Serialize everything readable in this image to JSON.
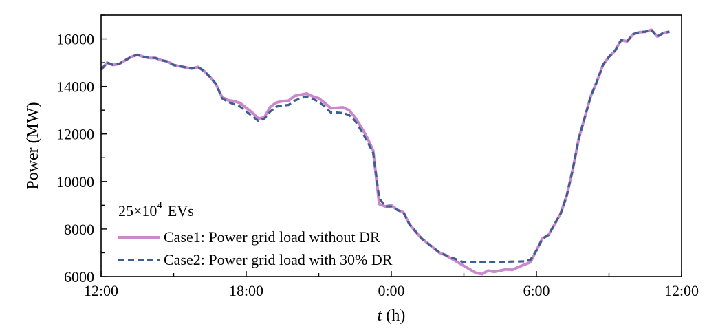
{
  "chart_data": {
    "type": "line",
    "xlabel_var": "t",
    "xlabel_unit": " (h)",
    "ylabel": "Power (MW)",
    "xlim": [
      0,
      24
    ],
    "ylim": [
      6000,
      17000
    ],
    "x_ticks": [
      {
        "value": 0,
        "label": "12:00"
      },
      {
        "value": 6,
        "label": "18:00"
      },
      {
        "value": 12,
        "label": "0:00"
      },
      {
        "value": 18,
        "label": "6:00"
      },
      {
        "value": 24,
        "label": "12:00"
      }
    ],
    "y_ticks": [
      6000,
      8000,
      10000,
      12000,
      14000,
      16000
    ],
    "legend": {
      "header_base": "25×10",
      "header_sup": "4",
      "header_tail": "EVs",
      "placement": "bottom-left"
    },
    "series": [
      {
        "name": "Case1: Power grid load without DR",
        "color": "#cc88cc",
        "dash": "solid",
        "points": [
          [
            0,
            14700
          ],
          [
            0.25,
            15000
          ],
          [
            0.5,
            14900
          ],
          [
            0.75,
            14950
          ],
          [
            1.0,
            15100
          ],
          [
            1.25,
            15250
          ],
          [
            1.5,
            15330
          ],
          [
            1.75,
            15250
          ],
          [
            2.0,
            15200
          ],
          [
            2.25,
            15200
          ],
          [
            2.5,
            15100
          ],
          [
            2.75,
            15050
          ],
          [
            3.0,
            14900
          ],
          [
            3.25,
            14850
          ],
          [
            3.5,
            14800
          ],
          [
            3.75,
            14750
          ],
          [
            4.0,
            14820
          ],
          [
            4.25,
            14650
          ],
          [
            4.5,
            14400
          ],
          [
            4.75,
            14100
          ],
          [
            5.0,
            13550
          ],
          [
            5.25,
            13420
          ],
          [
            5.5,
            13380
          ],
          [
            5.75,
            13300
          ],
          [
            6.0,
            13100
          ],
          [
            6.25,
            12900
          ],
          [
            6.5,
            12650
          ],
          [
            6.75,
            12700
          ],
          [
            7.0,
            13150
          ],
          [
            7.25,
            13320
          ],
          [
            7.5,
            13380
          ],
          [
            7.75,
            13400
          ],
          [
            8.0,
            13600
          ],
          [
            8.25,
            13650
          ],
          [
            8.5,
            13700
          ],
          [
            8.75,
            13580
          ],
          [
            9.0,
            13500
          ],
          [
            9.25,
            13300
          ],
          [
            9.5,
            13080
          ],
          [
            9.75,
            13100
          ],
          [
            10.0,
            13120
          ],
          [
            10.25,
            13000
          ],
          [
            10.5,
            12700
          ],
          [
            10.75,
            12300
          ],
          [
            11.0,
            11850
          ],
          [
            11.25,
            11300
          ],
          [
            11.5,
            9050
          ],
          [
            11.75,
            8950
          ],
          [
            12.0,
            9000
          ],
          [
            12.25,
            8800
          ],
          [
            12.5,
            8700
          ],
          [
            12.75,
            8200
          ],
          [
            13.0,
            7900
          ],
          [
            13.25,
            7600
          ],
          [
            13.5,
            7400
          ],
          [
            13.75,
            7200
          ],
          [
            14.0,
            7000
          ],
          [
            14.25,
            6900
          ],
          [
            14.5,
            6750
          ],
          [
            14.75,
            6600
          ],
          [
            15.0,
            6450
          ],
          [
            15.25,
            6300
          ],
          [
            15.5,
            6150
          ],
          [
            15.75,
            6100
          ],
          [
            16.0,
            6250
          ],
          [
            16.25,
            6200
          ],
          [
            16.5,
            6250
          ],
          [
            16.75,
            6300
          ],
          [
            17.0,
            6280
          ],
          [
            17.25,
            6400
          ],
          [
            17.5,
            6500
          ],
          [
            17.75,
            6600
          ],
          [
            18.0,
            7100
          ],
          [
            18.25,
            7600
          ],
          [
            18.5,
            7750
          ],
          [
            18.75,
            8200
          ],
          [
            19.0,
            8650
          ],
          [
            19.25,
            9400
          ],
          [
            19.5,
            10500
          ],
          [
            19.75,
            11800
          ],
          [
            20.0,
            12700
          ],
          [
            20.25,
            13600
          ],
          [
            20.5,
            14200
          ],
          [
            20.75,
            14900
          ],
          [
            21.0,
            15250
          ],
          [
            21.25,
            15500
          ],
          [
            21.5,
            15950
          ],
          [
            21.75,
            15900
          ],
          [
            22.0,
            16200
          ],
          [
            22.25,
            16280
          ],
          [
            22.5,
            16300
          ],
          [
            22.75,
            16380
          ],
          [
            23.0,
            16100
          ],
          [
            23.25,
            16250
          ],
          [
            23.5,
            16300
          ]
        ]
      },
      {
        "name": "Case2: Power grid load with 30% DR",
        "color": "#3d5f8f",
        "dash": "dashed",
        "points": [
          [
            0,
            14700
          ],
          [
            0.25,
            15000
          ],
          [
            0.5,
            14900
          ],
          [
            0.75,
            14950
          ],
          [
            1.0,
            15100
          ],
          [
            1.25,
            15250
          ],
          [
            1.5,
            15330
          ],
          [
            1.75,
            15250
          ],
          [
            2.0,
            15200
          ],
          [
            2.25,
            15200
          ],
          [
            2.5,
            15100
          ],
          [
            2.75,
            15050
          ],
          [
            3.0,
            14900
          ],
          [
            3.25,
            14850
          ],
          [
            3.5,
            14800
          ],
          [
            3.75,
            14750
          ],
          [
            4.0,
            14820
          ],
          [
            4.25,
            14650
          ],
          [
            4.5,
            14400
          ],
          [
            4.75,
            14100
          ],
          [
            5.0,
            13500
          ],
          [
            5.25,
            13350
          ],
          [
            5.5,
            13250
          ],
          [
            5.75,
            13150
          ],
          [
            6.0,
            12950
          ],
          [
            6.25,
            12750
          ],
          [
            6.5,
            12550
          ],
          [
            6.75,
            12650
          ],
          [
            7.0,
            12950
          ],
          [
            7.25,
            13150
          ],
          [
            7.5,
            13200
          ],
          [
            7.75,
            13220
          ],
          [
            8.0,
            13400
          ],
          [
            8.25,
            13500
          ],
          [
            8.5,
            13580
          ],
          [
            8.75,
            13480
          ],
          [
            9.0,
            13350
          ],
          [
            9.25,
            13150
          ],
          [
            9.5,
            12900
          ],
          [
            9.75,
            12900
          ],
          [
            10.0,
            12880
          ],
          [
            10.25,
            12800
          ],
          [
            10.5,
            12550
          ],
          [
            10.75,
            12150
          ],
          [
            11.0,
            11700
          ],
          [
            11.25,
            11200
          ],
          [
            11.5,
            9300
          ],
          [
            11.75,
            8950
          ],
          [
            12.0,
            8950
          ],
          [
            12.25,
            8800
          ],
          [
            12.5,
            8700
          ],
          [
            12.75,
            8200
          ],
          [
            13.0,
            7900
          ],
          [
            13.25,
            7600
          ],
          [
            13.5,
            7400
          ],
          [
            13.75,
            7200
          ],
          [
            14.0,
            7000
          ],
          [
            14.25,
            6900
          ],
          [
            14.5,
            6800
          ],
          [
            14.75,
            6700
          ],
          [
            15.0,
            6600
          ],
          [
            15.25,
            6600
          ],
          [
            15.5,
            6600
          ],
          [
            15.75,
            6600
          ],
          [
            16.0,
            6600
          ],
          [
            16.25,
            6610
          ],
          [
            16.5,
            6620
          ],
          [
            16.75,
            6620
          ],
          [
            17.0,
            6630
          ],
          [
            17.25,
            6630
          ],
          [
            17.5,
            6640
          ],
          [
            17.75,
            6700
          ],
          [
            18.0,
            7100
          ],
          [
            18.25,
            7600
          ],
          [
            18.5,
            7750
          ],
          [
            18.75,
            8200
          ],
          [
            19.0,
            8650
          ],
          [
            19.25,
            9400
          ],
          [
            19.5,
            10500
          ],
          [
            19.75,
            11800
          ],
          [
            20.0,
            12700
          ],
          [
            20.25,
            13600
          ],
          [
            20.5,
            14200
          ],
          [
            20.75,
            14900
          ],
          [
            21.0,
            15250
          ],
          [
            21.25,
            15500
          ],
          [
            21.5,
            15950
          ],
          [
            21.75,
            15900
          ],
          [
            22.0,
            16200
          ],
          [
            22.25,
            16280
          ],
          [
            22.5,
            16300
          ],
          [
            22.75,
            16380
          ],
          [
            23.0,
            16100
          ],
          [
            23.25,
            16250
          ],
          [
            23.5,
            16300
          ]
        ]
      }
    ]
  }
}
